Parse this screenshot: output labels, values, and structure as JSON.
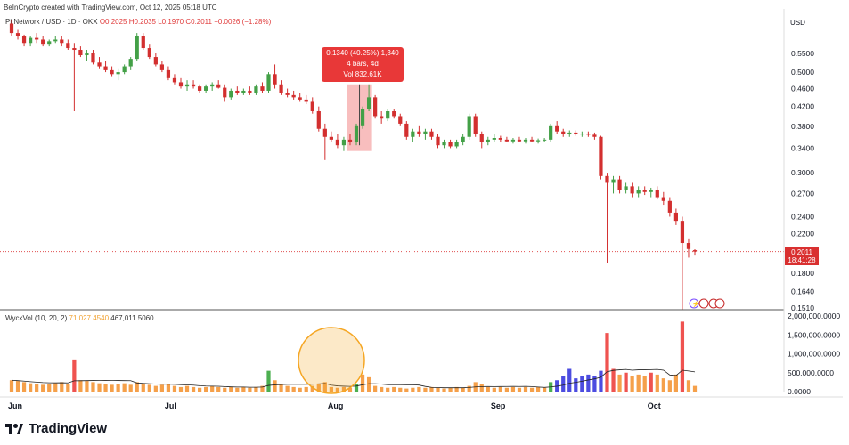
{
  "header": {
    "credit": "BeInCrypto created with TradingView.com, Oct 12, 2025 05:18 UTC",
    "symbol": "Pi Network / USD · 1D · OKX",
    "ohlc": "O0.2025 H0.2035 L0.1970 C0.2011 −0.0026 (−1.28%)",
    "currency": "USD"
  },
  "tooltip": {
    "line1": "0.1340 (40.25%) 1,340",
    "line2": "4 bars, 4d",
    "line3": "Vol 832.61K"
  },
  "price_tag": {
    "price": "0.2011",
    "countdown": "18:41:28"
  },
  "volume_legend": {
    "label": "WyckVol (10, 20, 2)",
    "value1": "71,027.4540",
    "value2": "467,011.5060"
  },
  "branding": {
    "logo_text": "TradingView"
  },
  "colors": {
    "up": "#26a69a",
    "down": "#ef5350",
    "candle_down": "#d32f2f",
    "candle_up": "#43a047",
    "vol_orange": "#f5a04a",
    "vol_red": "#ef5350",
    "vol_green": "#4caf50",
    "vol_blue": "#4c4ce0",
    "highlight": "#f5a8a8",
    "circle": "#f5a623"
  },
  "chart_data": [
    {
      "type": "candlestick",
      "y_scale": "log",
      "price_ticks": [
        "0.5500",
        "0.5000",
        "0.4600",
        "0.4200",
        "0.3800",
        "0.3400",
        "0.3000",
        "0.2700",
        "0.2400",
        "0.2200",
        "0.1800",
        "0.1640",
        "0.1510"
      ],
      "x_ticks": [
        "Jun",
        "Jul",
        "Aug",
        "Sep",
        "Oct"
      ],
      "last_close": 0.2011,
      "candles": [
        [
          0.64,
          0.65,
          0.6,
          0.61
        ],
        [
          0.61,
          0.62,
          0.59,
          0.6
        ],
        [
          0.6,
          0.605,
          0.57,
          0.58
        ],
        [
          0.58,
          0.6,
          0.57,
          0.595
        ],
        [
          0.595,
          0.61,
          0.58,
          0.59
        ],
        [
          0.59,
          0.6,
          0.57,
          0.575
        ],
        [
          0.575,
          0.59,
          0.57,
          0.585
        ],
        [
          0.585,
          0.6,
          0.58,
          0.59
        ],
        [
          0.59,
          0.6,
          0.57,
          0.58
        ],
        [
          0.58,
          0.59,
          0.56,
          0.565
        ],
        [
          0.565,
          0.58,
          0.41,
          0.56
        ],
        [
          0.56,
          0.57,
          0.54,
          0.545
        ],
        [
          0.545,
          0.56,
          0.53,
          0.55
        ],
        [
          0.55,
          0.56,
          0.52,
          0.525
        ],
        [
          0.525,
          0.54,
          0.51,
          0.515
        ],
        [
          0.515,
          0.53,
          0.5,
          0.505
        ],
        [
          0.505,
          0.515,
          0.49,
          0.495
        ],
        [
          0.495,
          0.51,
          0.48,
          0.5
        ],
        [
          0.5,
          0.52,
          0.495,
          0.515
        ],
        [
          0.515,
          0.54,
          0.505,
          0.535
        ],
        [
          0.535,
          0.61,
          0.53,
          0.6
        ],
        [
          0.6,
          0.61,
          0.56,
          0.565
        ],
        [
          0.565,
          0.575,
          0.535,
          0.54
        ],
        [
          0.54,
          0.55,
          0.515,
          0.52
        ],
        [
          0.52,
          0.53,
          0.5,
          0.505
        ],
        [
          0.505,
          0.515,
          0.48,
          0.485
        ],
        [
          0.485,
          0.495,
          0.47,
          0.475
        ],
        [
          0.475,
          0.485,
          0.46,
          0.465
        ],
        [
          0.465,
          0.48,
          0.455,
          0.47
        ],
        [
          0.47,
          0.48,
          0.46,
          0.465
        ],
        [
          0.465,
          0.47,
          0.45,
          0.455
        ],
        [
          0.455,
          0.47,
          0.45,
          0.465
        ],
        [
          0.465,
          0.475,
          0.455,
          0.47
        ],
        [
          0.47,
          0.48,
          0.46,
          0.462
        ],
        [
          0.462,
          0.47,
          0.43,
          0.44
        ],
        [
          0.44,
          0.46,
          0.435,
          0.455
        ],
        [
          0.455,
          0.465,
          0.445,
          0.45
        ],
        [
          0.45,
          0.46,
          0.445,
          0.455
        ],
        [
          0.455,
          0.465,
          0.445,
          0.45
        ],
        [
          0.45,
          0.47,
          0.445,
          0.465
        ],
        [
          0.465,
          0.475,
          0.45,
          0.455
        ],
        [
          0.455,
          0.5,
          0.45,
          0.495
        ],
        [
          0.495,
          0.52,
          0.46,
          0.47
        ],
        [
          0.47,
          0.48,
          0.445,
          0.45
        ],
        [
          0.45,
          0.46,
          0.44,
          0.445
        ],
        [
          0.445,
          0.455,
          0.435,
          0.44
        ],
        [
          0.44,
          0.45,
          0.43,
          0.435
        ],
        [
          0.435,
          0.445,
          0.425,
          0.43
        ],
        [
          0.43,
          0.44,
          0.405,
          0.41
        ],
        [
          0.41,
          0.42,
          0.37,
          0.375
        ],
        [
          0.375,
          0.385,
          0.32,
          0.36
        ],
        [
          0.36,
          0.37,
          0.35,
          0.355
        ],
        [
          0.355,
          0.365,
          0.34,
          0.345
        ],
        [
          0.345,
          0.36,
          0.335,
          0.355
        ],
        [
          0.355,
          0.365,
          0.345,
          0.35
        ],
        [
          0.35,
          0.385,
          0.345,
          0.38
        ],
        [
          0.38,
          0.42,
          0.375,
          0.415
        ],
        [
          0.415,
          0.47,
          0.41,
          0.44
        ],
        [
          0.44,
          0.445,
          0.395,
          0.4
        ],
        [
          0.4,
          0.41,
          0.385,
          0.395
        ],
        [
          0.395,
          0.415,
          0.39,
          0.41
        ],
        [
          0.41,
          0.415,
          0.395,
          0.4
        ],
        [
          0.4,
          0.405,
          0.38,
          0.385
        ],
        [
          0.385,
          0.39,
          0.355,
          0.36
        ],
        [
          0.36,
          0.375,
          0.35,
          0.37
        ],
        [
          0.37,
          0.38,
          0.36,
          0.365
        ],
        [
          0.365,
          0.375,
          0.355,
          0.37
        ],
        [
          0.37,
          0.375,
          0.355,
          0.36
        ],
        [
          0.36,
          0.365,
          0.34,
          0.345
        ],
        [
          0.345,
          0.355,
          0.34,
          0.35
        ],
        [
          0.35,
          0.355,
          0.34,
          0.343
        ],
        [
          0.343,
          0.355,
          0.34,
          0.35
        ],
        [
          0.35,
          0.365,
          0.345,
          0.36
        ],
        [
          0.36,
          0.405,
          0.355,
          0.4
        ],
        [
          0.4,
          0.405,
          0.36,
          0.365
        ],
        [
          0.365,
          0.37,
          0.34,
          0.35
        ],
        [
          0.35,
          0.36,
          0.345,
          0.355
        ],
        [
          0.355,
          0.365,
          0.35,
          0.358
        ],
        [
          0.358,
          0.362,
          0.35,
          0.355
        ],
        [
          0.355,
          0.36,
          0.35,
          0.352
        ],
        [
          0.352,
          0.358,
          0.348,
          0.355
        ],
        [
          0.355,
          0.36,
          0.35,
          0.352
        ],
        [
          0.352,
          0.358,
          0.348,
          0.355
        ],
        [
          0.355,
          0.36,
          0.35,
          0.352
        ],
        [
          0.352,
          0.357,
          0.348,
          0.354
        ],
        [
          0.354,
          0.358,
          0.35,
          0.355
        ],
        [
          0.355,
          0.385,
          0.35,
          0.38
        ],
        [
          0.38,
          0.39,
          0.365,
          0.37
        ],
        [
          0.37,
          0.375,
          0.36,
          0.365
        ],
        [
          0.365,
          0.372,
          0.36,
          0.368
        ],
        [
          0.368,
          0.372,
          0.362,
          0.365
        ],
        [
          0.365,
          0.37,
          0.36,
          0.366
        ],
        [
          0.366,
          0.37,
          0.36,
          0.364
        ],
        [
          0.364,
          0.368,
          0.355,
          0.36
        ],
        [
          0.36,
          0.362,
          0.29,
          0.295
        ],
        [
          0.295,
          0.3,
          0.19,
          0.285
        ],
        [
          0.285,
          0.295,
          0.27,
          0.29
        ],
        [
          0.29,
          0.295,
          0.27,
          0.275
        ],
        [
          0.275,
          0.285,
          0.27,
          0.28
        ],
        [
          0.28,
          0.285,
          0.265,
          0.27
        ],
        [
          0.27,
          0.28,
          0.265,
          0.275
        ],
        [
          0.275,
          0.28,
          0.268,
          0.272
        ],
        [
          0.272,
          0.278,
          0.265,
          0.275
        ],
        [
          0.275,
          0.28,
          0.262,
          0.265
        ],
        [
          0.265,
          0.272,
          0.255,
          0.26
        ],
        [
          0.26,
          0.265,
          0.24,
          0.245
        ],
        [
          0.245,
          0.25,
          0.23,
          0.235
        ],
        [
          0.235,
          0.24,
          0.15,
          0.21
        ],
        [
          0.21,
          0.215,
          0.195,
          0.2037
        ],
        [
          0.2025,
          0.2035,
          0.197,
          0.2011
        ]
      ],
      "volume": [
        0.3,
        0.28,
        0.25,
        0.22,
        0.2,
        0.18,
        0.2,
        0.22,
        0.25,
        0.2,
        0.85,
        0.3,
        0.28,
        0.25,
        0.22,
        0.2,
        0.18,
        0.2,
        0.22,
        0.18,
        0.25,
        0.2,
        0.18,
        0.15,
        0.18,
        0.2,
        0.15,
        0.12,
        0.15,
        0.12,
        0.1,
        0.12,
        0.15,
        0.12,
        0.1,
        0.12,
        0.1,
        0.12,
        0.1,
        0.12,
        0.15,
        0.55,
        0.3,
        0.2,
        0.15,
        0.12,
        0.1,
        0.12,
        0.15,
        0.2,
        0.25,
        0.12,
        0.1,
        0.12,
        0.1,
        0.2,
        0.45,
        0.38,
        0.15,
        0.12,
        0.1,
        0.12,
        0.1,
        0.08,
        0.1,
        0.12,
        0.1,
        0.12,
        0.1,
        0.08,
        0.1,
        0.12,
        0.1,
        0.15,
        0.25,
        0.2,
        0.12,
        0.1,
        0.12,
        0.1,
        0.12,
        0.1,
        0.12,
        0.1,
        0.12,
        0.1,
        0.25,
        0.3,
        0.4,
        0.6,
        0.35,
        0.4,
        0.45,
        0.4,
        0.55,
        1.55,
        0.6,
        0.45,
        0.5,
        0.4,
        0.45,
        0.4,
        0.5,
        0.45,
        0.35,
        0.3,
        0.45,
        1.85,
        0.3,
        0.15
      ]
    }
  ]
}
